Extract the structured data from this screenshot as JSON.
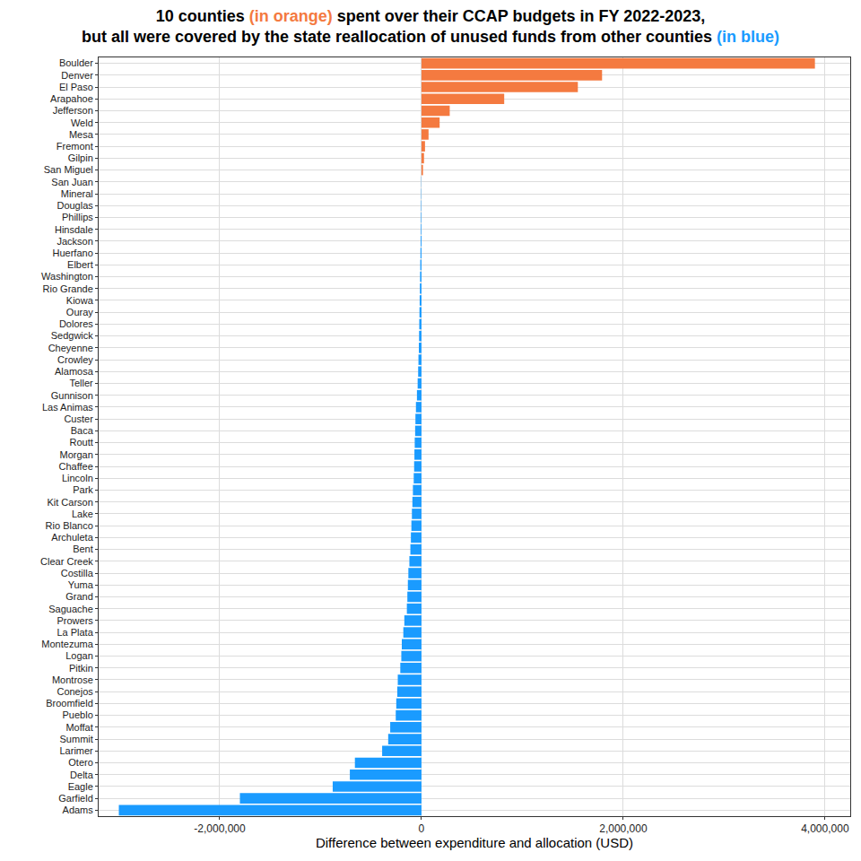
{
  "chart_data": {
    "type": "bar",
    "orientation": "horizontal",
    "title": "10 counties (in orange) spent over their CCAP budgets in FY 2022-2023,\nbut all were covered by the state reallocation of unused funds from other counties (in blue)",
    "xlabel": "Difference between expenditure and allocation (USD)",
    "categories": [
      "Boulder",
      "Denver",
      "El Paso",
      "Arapahoe",
      "Jefferson",
      "Weld",
      "Mesa",
      "Fremont",
      "Gilpin",
      "San Miguel",
      "San Juan",
      "Mineral",
      "Douglas",
      "Phillips",
      "Hinsdale",
      "Jackson",
      "Huerfano",
      "Elbert",
      "Washington",
      "Rio Grande",
      "Kiowa",
      "Ouray",
      "Dolores",
      "Sedgwick",
      "Cheyenne",
      "Crowley",
      "Alamosa",
      "Teller",
      "Gunnison",
      "Las Animas",
      "Custer",
      "Baca",
      "Routt",
      "Morgan",
      "Chaffee",
      "Lincoln",
      "Park",
      "Kit Carson",
      "Lake",
      "Rio Blanco",
      "Archuleta",
      "Bent",
      "Clear Creek",
      "Costilla",
      "Yuma",
      "Grand",
      "Saguache",
      "Prowers",
      "La Plata",
      "Montezuma",
      "Logan",
      "Pitkin",
      "Montrose",
      "Conejos",
      "Broomfield",
      "Pueblo",
      "Moffat",
      "Summit",
      "Larimer",
      "Otero",
      "Delta",
      "Eagle",
      "Garfield",
      "Adams"
    ],
    "values": [
      3900000,
      1790000,
      1550000,
      820000,
      280000,
      180000,
      70000,
      35000,
      25000,
      15000,
      -2000,
      -3000,
      -4000,
      -5000,
      -6000,
      -8000,
      -10000,
      -12000,
      -14000,
      -16000,
      -18000,
      -20000,
      -22000,
      -24000,
      -26000,
      -30000,
      -33000,
      -38000,
      -45000,
      -55000,
      -60000,
      -63000,
      -67000,
      -70000,
      -73000,
      -77000,
      -85000,
      -90000,
      -95000,
      -100000,
      -105000,
      -110000,
      -120000,
      -130000,
      -135000,
      -140000,
      -145000,
      -170000,
      -180000,
      -195000,
      -200000,
      -210000,
      -235000,
      -240000,
      -250000,
      -255000,
      -310000,
      -330000,
      -390000,
      -660000,
      -710000,
      -880000,
      -1800000,
      -3000000
    ],
    "colors": [
      "#F47A40",
      "#F47A40",
      "#F47A40",
      "#F47A40",
      "#F47A40",
      "#F47A40",
      "#F47A40",
      "#F47A40",
      "#F47A40",
      "#F47A40",
      "#1A9BFF",
      "#1A9BFF",
      "#1A9BFF",
      "#1A9BFF",
      "#1A9BFF",
      "#1A9BFF",
      "#1A9BFF",
      "#1A9BFF",
      "#1A9BFF",
      "#1A9BFF",
      "#1A9BFF",
      "#1A9BFF",
      "#1A9BFF",
      "#1A9BFF",
      "#1A9BFF",
      "#1A9BFF",
      "#1A9BFF",
      "#1A9BFF",
      "#1A9BFF",
      "#1A9BFF",
      "#1A9BFF",
      "#1A9BFF",
      "#1A9BFF",
      "#1A9BFF",
      "#1A9BFF",
      "#1A9BFF",
      "#1A9BFF",
      "#1A9BFF",
      "#1A9BFF",
      "#1A9BFF",
      "#1A9BFF",
      "#1A9BFF",
      "#1A9BFF",
      "#1A9BFF",
      "#1A9BFF",
      "#1A9BFF",
      "#1A9BFF",
      "#1A9BFF",
      "#1A9BFF",
      "#1A9BFF",
      "#1A9BFF",
      "#1A9BFF",
      "#1A9BFF",
      "#1A9BFF",
      "#1A9BFF",
      "#1A9BFF",
      "#1A9BFF",
      "#1A9BFF",
      "#1A9BFF",
      "#1A9BFF",
      "#1A9BFF",
      "#1A9BFF",
      "#1A9BFF",
      "#1A9BFF"
    ],
    "xlim": [
      -3200000,
      4250000
    ],
    "xticks": [
      {
        "value": -2000000,
        "label": "-2,000,000"
      },
      0,
      {
        "value": 2000000,
        "label": "2,000,000"
      },
      {
        "value": 4000000,
        "label": "4,000,000"
      }
    ],
    "grid": true
  }
}
